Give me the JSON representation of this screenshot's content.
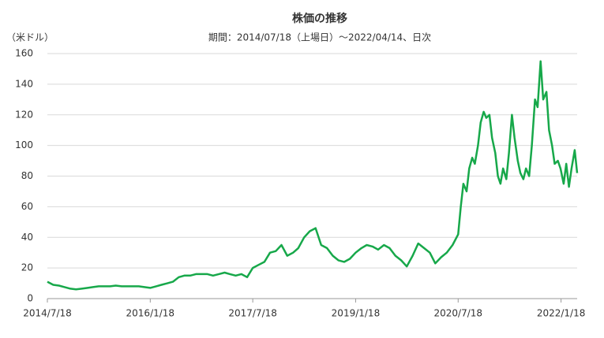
{
  "chart_data": {
    "type": "line",
    "title": "株価の推移",
    "subtitle": "期間：2014/07/18（上場日）～2022/04/14、日次",
    "y_label": "（米ドル）",
    "x": [
      "2014-07-18",
      "2014-08-18",
      "2014-09-18",
      "2014-10-18",
      "2014-11-18",
      "2014-12-18",
      "2015-01-18",
      "2015-02-18",
      "2015-03-18",
      "2015-04-18",
      "2015-05-18",
      "2015-06-18",
      "2015-07-18",
      "2015-08-18",
      "2015-09-18",
      "2015-10-18",
      "2015-11-18",
      "2015-12-18",
      "2016-01-18",
      "2016-02-18",
      "2016-03-18",
      "2016-04-18",
      "2016-05-18",
      "2016-06-18",
      "2016-07-18",
      "2016-08-18",
      "2016-09-18",
      "2016-10-18",
      "2016-11-18",
      "2016-12-18",
      "2017-01-18",
      "2017-02-18",
      "2017-03-18",
      "2017-04-18",
      "2017-05-18",
      "2017-06-18",
      "2017-07-18",
      "2017-08-18",
      "2017-09-18",
      "2017-10-18",
      "2017-11-18",
      "2017-12-18",
      "2018-01-18",
      "2018-02-18",
      "2018-03-18",
      "2018-04-18",
      "2018-05-18",
      "2018-06-18",
      "2018-07-18",
      "2018-08-18",
      "2018-09-18",
      "2018-10-18",
      "2018-11-18",
      "2018-12-18",
      "2019-01-18",
      "2019-02-18",
      "2019-03-18",
      "2019-04-18",
      "2019-05-18",
      "2019-06-18",
      "2019-07-18",
      "2019-08-18",
      "2019-09-18",
      "2019-10-18",
      "2019-11-18",
      "2019-12-18",
      "2020-01-18",
      "2020-02-18",
      "2020-03-18",
      "2020-04-18",
      "2020-05-18",
      "2020-06-18",
      "2020-07-18",
      "2020-08-01",
      "2020-08-15",
      "2020-09-01",
      "2020-09-15",
      "2020-10-01",
      "2020-10-15",
      "2020-11-01",
      "2020-11-15",
      "2020-12-01",
      "2020-12-15",
      "2021-01-01",
      "2021-01-15",
      "2021-02-01",
      "2021-02-15",
      "2021-03-01",
      "2021-03-15",
      "2021-04-01",
      "2021-04-15",
      "2021-05-01",
      "2021-05-15",
      "2021-06-01",
      "2021-06-15",
      "2021-07-01",
      "2021-07-15",
      "2021-08-01",
      "2021-08-15",
      "2021-09-01",
      "2021-09-15",
      "2021-10-01",
      "2021-10-15",
      "2021-11-01",
      "2021-11-15",
      "2021-12-01",
      "2021-12-15",
      "2022-01-01",
      "2022-01-15",
      "2022-02-01",
      "2022-02-15",
      "2022-03-01",
      "2022-03-15",
      "2022-04-01",
      "2022-04-14"
    ],
    "series": [
      {
        "color": "#17a84a",
        "values": [
          11,
          9,
          8.5,
          7.5,
          6.5,
          6,
          6.5,
          7,
          7.5,
          8,
          8,
          8,
          8.5,
          8,
          8,
          8,
          8,
          7.5,
          7,
          8,
          9,
          10,
          11,
          14,
          15,
          15,
          16,
          16,
          16,
          15,
          16,
          17,
          16,
          15,
          16,
          14,
          20,
          22,
          24,
          30,
          31,
          35,
          28,
          30,
          33,
          40,
          44,
          46,
          35,
          33,
          28,
          25,
          24,
          26,
          30,
          33,
          35,
          34,
          32,
          35,
          33,
          28,
          25,
          21,
          28,
          36,
          33,
          30,
          23,
          27,
          30,
          35,
          42,
          60,
          75,
          70,
          85,
          92,
          88,
          100,
          115,
          122,
          118,
          120,
          105,
          95,
          80,
          75,
          85,
          78,
          95,
          120,
          105,
          90,
          82,
          78,
          85,
          80,
          100,
          130,
          125,
          155,
          130,
          135,
          110,
          100,
          88,
          90,
          85,
          75,
          88,
          73,
          85,
          97,
          82
        ]
      }
    ],
    "xlim": [
      "2014-07-18",
      "2022-04-14"
    ],
    "xticks": [
      {
        "value": "2014-07-18",
        "label": "2014/7/18"
      },
      {
        "value": "2016-01-18",
        "label": "2016/1/18"
      },
      {
        "value": "2017-07-18",
        "label": "2017/7/18"
      },
      {
        "value": "2019-01-18",
        "label": "2019/1/18"
      },
      {
        "value": "2020-07-18",
        "label": "2020/7/18"
      },
      {
        "value": "2022-01-18",
        "label": "2022/1/18"
      }
    ],
    "ylim": [
      0,
      160
    ],
    "yticks": [
      0,
      20,
      40,
      60,
      80,
      100,
      120,
      140,
      160
    ],
    "grid": true
  }
}
